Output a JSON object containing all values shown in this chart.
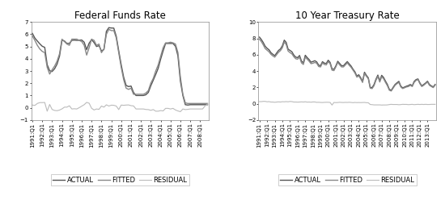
{
  "title1": "Federal Funds Rate",
  "title2": "10 Year Treasury Rate",
  "legend_labels": [
    "ACTUAL",
    "FITTED",
    "RESIDUAL"
  ],
  "ffr_xlabels": [
    "1991:Q1",
    "1992:Q1",
    "1993:Q1",
    "1994:Q1",
    "1995:Q1",
    "1996:Q1",
    "1997:Q1",
    "1998:Q1",
    "1999:Q1",
    "2000:Q1",
    "2001:Q1",
    "2002:Q1",
    "2003:Q1",
    "2004:Q1",
    "2005:Q1",
    "2006:Q1",
    "2007:Q1",
    "2008:Q1"
  ],
  "tyr_xlabels": [
    "1991:Q1",
    "1992:Q1",
    "1993:Q1",
    "1994:Q1",
    "1995:Q1",
    "1996:Q1",
    "1997:Q1",
    "1998:Q1",
    "1999:Q1",
    "2000:Q1",
    "2001:Q1",
    "2002:Q1",
    "2003:Q1",
    "2004:Q1",
    "2005:Q1",
    "2006:Q1",
    "2007:Q1",
    "2008:Q1",
    "2009:Q1",
    "2010:Q1",
    "2011:Q1",
    "2012:Q1",
    "2013:Q1"
  ],
  "ffr_ylim": [
    -1.0,
    7.0
  ],
  "ffr_yticks": [
    -1.0,
    0.0,
    1.0,
    2.0,
    3.0,
    4.0,
    5.0,
    6.0,
    7.0
  ],
  "tyr_ylim": [
    -2.0,
    10.0
  ],
  "tyr_yticks": [
    -2.0,
    0.0,
    2.0,
    4.0,
    6.0,
    8.0,
    10.0
  ],
  "color_actual": "#555555",
  "color_fitted": "#888888",
  "color_residual": "#bbbbbb",
  "lw_actual": 1.0,
  "lw_fitted": 1.0,
  "lw_residual": 0.8,
  "background_color": "#ffffff",
  "title_fontsize": 8.5,
  "tick_fontsize": 5.0,
  "legend_fontsize": 6.0,
  "ffr_actual": [
    6.07,
    5.69,
    5.45,
    5.22,
    5.02,
    4.93,
    3.52,
    3.02,
    2.96,
    3.18,
    3.56,
    4.21,
    5.51,
    5.45,
    5.25,
    5.26,
    5.5,
    5.52,
    5.5,
    5.51,
    5.53,
    5.35,
    4.74,
    5.27,
    5.56,
    5.32,
    5.0,
    5.07,
    4.64,
    4.75,
    6.24,
    6.54,
    6.51,
    6.5,
    5.84,
    4.65,
    3.52,
    2.5,
    1.82,
    1.73,
    1.77,
    1.25,
    1.0,
    1.0,
    1.0,
    1.0,
    1.06,
    1.25,
    1.79,
    2.25,
    2.72,
    3.22,
    3.97,
    4.64,
    5.25,
    5.25,
    5.25,
    5.25,
    5.02,
    4.24,
    2.18,
    1.0,
    0.25,
    0.22,
    0.25,
    0.25,
    0.25,
    0.25,
    0.25,
    0.25,
    0.25,
    0.25
  ],
  "ffr_fitted": [
    5.85,
    5.5,
    5.1,
    4.8,
    4.6,
    4.5,
    3.3,
    2.75,
    3.1,
    3.4,
    3.8,
    4.4,
    5.6,
    5.4,
    5.2,
    5.1,
    5.6,
    5.6,
    5.6,
    5.5,
    5.4,
    5.1,
    4.3,
    4.9,
    5.6,
    5.5,
    5.1,
    5.2,
    4.5,
    4.8,
    6.0,
    6.4,
    6.3,
    6.3,
    5.7,
    4.5,
    3.3,
    2.3,
    1.6,
    1.5,
    1.6,
    1.1,
    1.1,
    1.1,
    1.1,
    1.1,
    1.2,
    1.4,
    2.0,
    2.4,
    3.0,
    3.5,
    4.2,
    4.9,
    5.3,
    5.3,
    5.35,
    5.3,
    5.2,
    4.5,
    2.5,
    1.1,
    0.4,
    0.35,
    0.35,
    0.35,
    0.35,
    0.35,
    0.35,
    0.35,
    0.35,
    0.35
  ],
  "ffr_residual": [
    0.22,
    0.19,
    0.35,
    0.42,
    0.42,
    0.43,
    -0.28,
    0.27,
    -0.14,
    -0.22,
    -0.24,
    -0.19,
    -0.09,
    0.05,
    0.05,
    0.16,
    -0.1,
    -0.08,
    -0.1,
    0.01,
    0.13,
    0.25,
    0.44,
    0.37,
    -0.04,
    -0.18,
    -0.1,
    -0.13,
    0.14,
    0.05,
    0.24,
    0.14,
    0.21,
    0.2,
    0.14,
    -0.15,
    0.22,
    0.2,
    0.22,
    0.23,
    0.17,
    0.15,
    -0.1,
    -0.1,
    -0.1,
    -0.1,
    -0.14,
    -0.15,
    -0.21,
    -0.15,
    -0.28,
    -0.28,
    -0.23,
    -0.26,
    -0.05,
    -0.05,
    -0.1,
    -0.05,
    -0.18,
    -0.26,
    -0.32,
    -0.1,
    -0.15,
    -0.13,
    -0.1,
    -0.1,
    -0.1,
    -0.1,
    -0.1,
    -0.1,
    0.15,
    0.3
  ],
  "tyr_actual": [
    8.15,
    7.85,
    7.48,
    7.03,
    6.78,
    6.6,
    6.25,
    6.05,
    5.87,
    6.2,
    6.52,
    6.7,
    7.09,
    7.78,
    7.5,
    6.68,
    6.52,
    6.35,
    5.95,
    5.7,
    5.64,
    5.9,
    5.22,
    5.0,
    5.93,
    5.64,
    5.4,
    5.08,
    5.16,
    5.26,
    5.11,
    4.72,
    4.65,
    5.14,
    4.96,
    4.92,
    5.32,
    5.05,
    4.27,
    4.2,
    4.63,
    5.19,
    4.92,
    4.65,
    4.64,
    4.91,
    5.15,
    4.87,
    4.6,
    4.22,
    3.9,
    3.38,
    3.54,
    3.18,
    2.74,
    3.85,
    3.47,
    3.16,
    2.0,
    1.97,
    2.35,
    3.0,
    3.5,
    2.8,
    3.47,
    3.21,
    2.76,
    2.35,
    1.76,
    1.63,
    2.0,
    2.35,
    2.55,
    2.73,
    2.16,
    1.93,
    2.04,
    2.14,
    2.22,
    2.35,
    2.18,
    2.72,
    2.95,
    3.03,
    2.55,
    2.18,
    2.35,
    2.53,
    2.75,
    2.35,
    2.18,
    2.05,
    2.35
  ],
  "tyr_fitted": [
    7.9,
    7.6,
    7.2,
    6.75,
    6.55,
    6.35,
    6.05,
    5.85,
    5.7,
    6.0,
    6.3,
    6.5,
    6.85,
    7.55,
    7.25,
    6.45,
    6.25,
    6.1,
    5.75,
    5.5,
    5.45,
    5.7,
    5.0,
    4.8,
    5.7,
    5.45,
    5.2,
    4.9,
    4.95,
    5.05,
    4.95,
    4.55,
    4.5,
    5.0,
    4.8,
    4.75,
    5.15,
    4.9,
    4.1,
    4.05,
    4.5,
    5.05,
    4.75,
    4.5,
    4.5,
    4.75,
    5.0,
    4.7,
    4.45,
    4.1,
    3.75,
    3.25,
    3.4,
    3.05,
    2.6,
    3.7,
    3.35,
    3.05,
    1.9,
    1.85,
    2.2,
    2.85,
    3.35,
    2.65,
    3.3,
    3.05,
    2.6,
    2.2,
    1.65,
    1.55,
    1.9,
    2.25,
    2.45,
    2.6,
    2.05,
    1.85,
    1.95,
    2.05,
    2.1,
    2.25,
    2.1,
    2.6,
    2.85,
    2.95,
    2.45,
    2.1,
    2.25,
    2.45,
    2.65,
    2.25,
    2.1,
    1.97,
    2.27
  ],
  "tyr_residual": [
    0.25,
    0.25,
    0.28,
    0.28,
    0.23,
    0.25,
    0.2,
    0.2,
    0.17,
    0.2,
    0.22,
    0.2,
    0.24,
    0.23,
    0.25,
    0.23,
    0.27,
    0.25,
    0.2,
    0.2,
    0.19,
    0.2,
    0.22,
    0.2,
    0.23,
    0.19,
    0.2,
    0.18,
    0.21,
    0.21,
    0.16,
    0.17,
    0.15,
    0.14,
    0.16,
    0.17,
    0.17,
    0.15,
    -0.17,
    0.15,
    0.13,
    0.14,
    0.17,
    0.15,
    0.14,
    0.16,
    0.15,
    0.17,
    0.15,
    0.12,
    0.15,
    0.13,
    0.14,
    0.13,
    0.14,
    0.15,
    0.12,
    0.11,
    -0.1,
    -0.12,
    -0.15,
    -0.15,
    -0.15,
    -0.15,
    -0.17,
    -0.16,
    -0.16,
    -0.15,
    -0.11,
    -0.08,
    -0.1,
    -0.1,
    -0.1,
    -0.13,
    -0.11,
    -0.08,
    -0.09,
    -0.09,
    -0.12,
    -0.1,
    -0.08,
    -0.12,
    -0.1,
    -0.08,
    -0.1,
    -0.08,
    -0.1,
    -0.08,
    -0.1,
    -0.1,
    -0.08,
    -0.08,
    -0.08
  ]
}
